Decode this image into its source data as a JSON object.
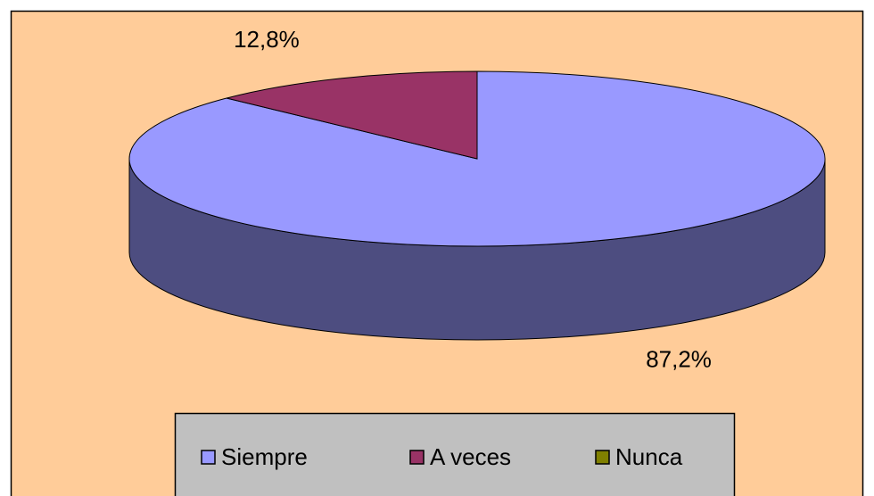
{
  "chart_data": {
    "type": "pie3d",
    "categories": [
      "Siempre",
      "A veces",
      "Nunca"
    ],
    "values": [
      87.2,
      12.8,
      0
    ],
    "value_labels": [
      "87,2%",
      "12,8%",
      null
    ],
    "colors": [
      "#9999ff",
      "#993366",
      "#808000"
    ],
    "side_colors": [
      "#4d4d80",
      "#4d1a33",
      "#404000"
    ],
    "background": "#ffcc99",
    "legend": "bottom"
  }
}
